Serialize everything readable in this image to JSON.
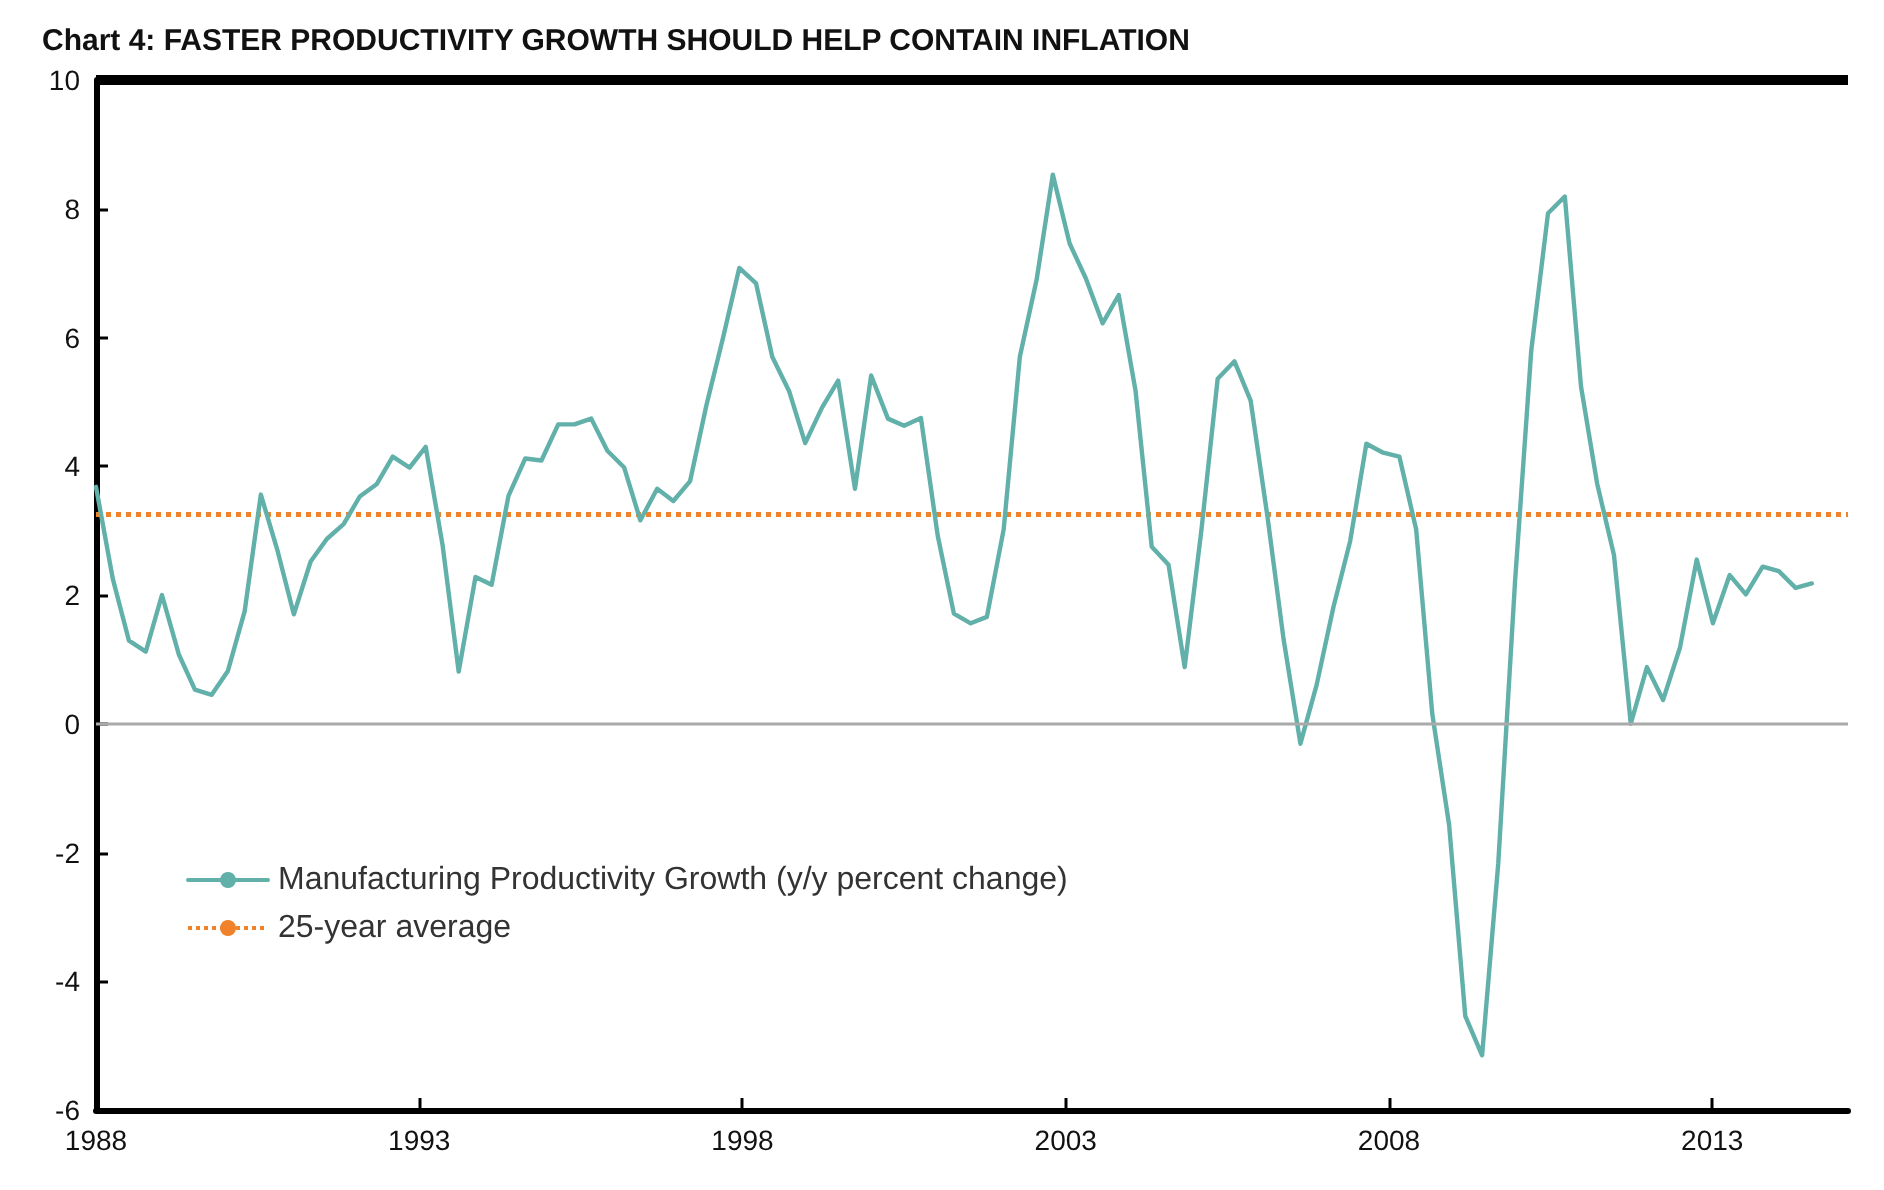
{
  "chart_data": {
    "type": "line",
    "title": "Chart 4: FASTER PRODUCTIVITY GROWTH SHOULD HELP CONTAIN INFLATION",
    "xlim": [
      1988,
      2015.1
    ],
    "xticks": [
      1988,
      1993,
      1998,
      2003,
      2008,
      2013
    ],
    "ylim": [
      -6,
      10
    ],
    "yticks": [
      -6,
      -4,
      -2,
      0,
      2,
      4,
      6,
      8,
      10
    ],
    "grid": false,
    "legend": "bottom left",
    "marker": "none",
    "ref_lines": [
      {
        "axis": "y",
        "value": 0,
        "color": "#aaaaaa",
        "line_style": "solid"
      }
    ],
    "series": [
      {
        "name": "Manufacturing Productivity Growth (y/y percent change)",
        "color": "#62b0aa",
        "line_style": "solid",
        "x": [
          1988.0,
          1988.26,
          1988.51,
          1988.77,
          1989.02,
          1989.28,
          1989.53,
          1989.79,
          1990.04,
          1990.3,
          1990.55,
          1990.81,
          1991.06,
          1991.32,
          1991.57,
          1991.83,
          1992.08,
          1992.34,
          1992.59,
          1992.85,
          1993.1,
          1993.36,
          1993.61,
          1993.87,
          1994.12,
          1994.38,
          1994.64,
          1994.89,
          1995.15,
          1995.4,
          1995.66,
          1995.91,
          1996.17,
          1996.42,
          1996.68,
          1996.93,
          1997.19,
          1997.44,
          1997.7,
          1997.95,
          1998.21,
          1998.46,
          1998.72,
          1998.97,
          1999.23,
          1999.48,
          1999.74,
          1999.99,
          2000.25,
          2000.5,
          2000.76,
          2001.02,
          2001.27,
          2001.53,
          2001.78,
          2002.04,
          2002.29,
          2002.55,
          2002.8,
          2003.06,
          2003.31,
          2003.57,
          2003.82,
          2004.08,
          2004.33,
          2004.59,
          2004.84,
          2005.1,
          2005.35,
          2005.61,
          2005.86,
          2006.12,
          2006.37,
          2006.63,
          2006.88,
          2007.14,
          2007.4,
          2007.65,
          2007.91,
          2008.16,
          2008.42,
          2008.67,
          2008.93,
          2009.18,
          2009.44,
          2009.69,
          2009.95,
          2010.2,
          2010.46,
          2010.72,
          2010.97,
          2011.22,
          2011.48,
          2011.74,
          2011.99,
          2012.24,
          2012.5,
          2012.76,
          2013.01,
          2013.27,
          2013.52,
          2013.78,
          2014.03,
          2014.29,
          2014.54
        ],
        "values": [
          3.68,
          2.25,
          1.29,
          1.12,
          2.0,
          1.08,
          0.53,
          0.45,
          0.82,
          1.75,
          3.56,
          2.68,
          1.7,
          2.52,
          2.87,
          3.1,
          3.53,
          3.72,
          4.15,
          3.98,
          4.3,
          2.78,
          0.81,
          2.28,
          2.16,
          3.54,
          4.12,
          4.09,
          4.65,
          4.65,
          4.74,
          4.24,
          3.98,
          3.16,
          3.65,
          3.46,
          3.77,
          4.94,
          6.0,
          7.08,
          6.84,
          5.7,
          5.17,
          4.36,
          4.91,
          5.33,
          3.65,
          5.41,
          4.74,
          4.63,
          4.75,
          2.92,
          1.71,
          1.56,
          1.66,
          3.02,
          5.7,
          6.9,
          8.53,
          7.46,
          6.92,
          6.22,
          6.66,
          5.17,
          2.75,
          2.47,
          0.88,
          3.02,
          5.36,
          5.63,
          5.02,
          3.22,
          1.31,
          -0.31,
          0.6,
          1.81,
          2.84,
          4.35,
          4.21,
          4.15,
          3.02,
          0.15,
          -1.57,
          -4.54,
          -5.15,
          -2.17,
          2.21,
          5.79,
          7.93,
          8.19,
          5.24,
          3.73,
          2.62,
          0.0,
          0.88,
          0.37,
          1.18,
          2.55,
          1.56,
          2.31,
          2.01,
          2.44,
          2.37,
          2.11,
          2.18
        ]
      },
      {
        "name": "25-year average",
        "color": "#f0832a",
        "line_style": "dotted",
        "x": [
          1988,
          2015.1
        ],
        "values": [
          3.25,
          3.25
        ]
      }
    ]
  }
}
